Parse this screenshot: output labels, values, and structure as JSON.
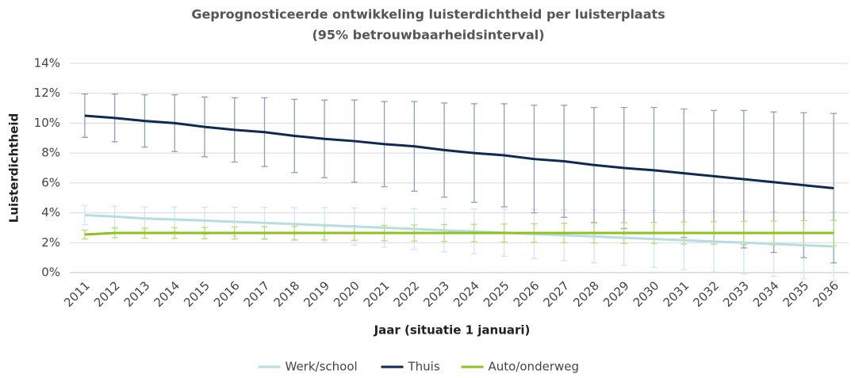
{
  "chart_data": {
    "type": "line",
    "title": "Geprognosticeerde  ontwikkeling  luisterdichtheid  per luisterplaats",
    "subtitle": "(95% betrouwbaarheidsinterval)",
    "x_label": "Jaar (situatie 1 januari)",
    "y_label": "Luisterdichtheid",
    "categories": [
      "2011",
      "2012",
      "2013",
      "2014",
      "2015",
      "2016",
      "2017",
      "2018",
      "2019",
      "2020",
      "2021",
      "2022",
      "2023",
      "2024",
      "2025",
      "2026",
      "2027",
      "2028",
      "2029",
      "2030",
      "2031",
      "2032",
      "2033",
      "2034",
      "2035",
      "2036"
    ],
    "ylim": [
      0,
      14
    ],
    "yticks": [
      {
        "value": 0,
        "label": "0%"
      },
      {
        "value": 2,
        "label": "2%"
      },
      {
        "value": 4,
        "label": "4%"
      },
      {
        "value": 6,
        "label": "6%"
      },
      {
        "value": 8,
        "label": "8%"
      },
      {
        "value": 10,
        "label": "10%"
      },
      {
        "value": 12,
        "label": "12%"
      },
      {
        "value": 14,
        "label": "14%"
      }
    ],
    "grid": true,
    "legend": "bottom",
    "series": [
      {
        "name": "Werk/school",
        "color": "#b7dde0",
        "error_color": "#cfe8e9",
        "values": [
          3.85,
          3.75,
          3.62,
          3.55,
          3.48,
          3.4,
          3.33,
          3.25,
          3.17,
          3.08,
          3.0,
          2.92,
          2.83,
          2.75,
          2.67,
          2.58,
          2.5,
          2.42,
          2.33,
          2.25,
          2.17,
          2.08,
          2.0,
          1.92,
          1.83,
          1.75
        ],
        "errors": [
          0.65,
          0.7,
          0.77,
          0.84,
          0.9,
          0.97,
          1.04,
          1.1,
          1.17,
          1.24,
          1.3,
          1.37,
          1.44,
          1.5,
          1.57,
          1.64,
          1.7,
          1.77,
          1.84,
          1.9,
          1.97,
          2.04,
          2.1,
          2.17,
          2.24,
          2.3
        ]
      },
      {
        "name": "Thuis",
        "color": "#0f2a52",
        "error_color": "#8fa0b8",
        "values": [
          10.5,
          10.35,
          10.15,
          10.0,
          9.75,
          9.55,
          9.4,
          9.15,
          8.95,
          8.8,
          8.6,
          8.45,
          8.2,
          8.0,
          7.85,
          7.6,
          7.45,
          7.2,
          7.0,
          6.85,
          6.65,
          6.45,
          6.25,
          6.05,
          5.85,
          5.65
        ],
        "errors": [
          1.45,
          1.6,
          1.75,
          1.9,
          2.0,
          2.15,
          2.3,
          2.45,
          2.6,
          2.75,
          2.85,
          3.0,
          3.15,
          3.3,
          3.45,
          3.6,
          3.75,
          3.85,
          4.05,
          4.2,
          4.3,
          4.4,
          4.6,
          4.7,
          4.85,
          5.0
        ]
      },
      {
        "name": "Auto/onderweg",
        "color": "#8dc21f",
        "error_color": "#b9dc7a",
        "values": [
          2.55,
          2.65,
          2.65,
          2.65,
          2.65,
          2.65,
          2.65,
          2.65,
          2.65,
          2.65,
          2.65,
          2.65,
          2.65,
          2.65,
          2.65,
          2.65,
          2.65,
          2.65,
          2.65,
          2.65,
          2.65,
          2.65,
          2.65,
          2.65,
          2.65,
          2.65
        ],
        "errors": [
          0.3,
          0.32,
          0.34,
          0.36,
          0.38,
          0.4,
          0.42,
          0.45,
          0.47,
          0.49,
          0.51,
          0.54,
          0.56,
          0.58,
          0.6,
          0.62,
          0.65,
          0.67,
          0.69,
          0.71,
          0.74,
          0.76,
          0.78,
          0.8,
          0.83,
          0.85
        ]
      }
    ]
  }
}
